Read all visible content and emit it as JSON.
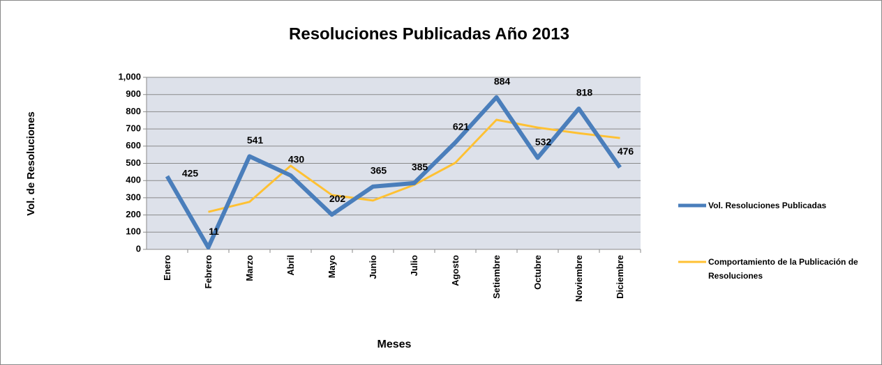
{
  "chart_data": {
    "type": "line",
    "title": "Resoluciones Publicadas Año 2013",
    "xlabel": "Meses",
    "ylabel": "Vol. de Resoluciones",
    "categories": [
      "Enero",
      "Febrero",
      "Marzo",
      "Abril",
      "Mayo",
      "Junio",
      "Julio",
      "Agosto",
      "Setiembre",
      "Octubre",
      "Noviembre",
      "Diciembre"
    ],
    "series": [
      {
        "name": "Vol. Resoluciones Publicadas",
        "color": "#4a7ebb",
        "values": [
          425,
          11,
          541,
          430,
          202,
          365,
          385,
          621,
          884,
          532,
          818,
          476
        ]
      },
      {
        "name": "Comportamiento de la Publicación de Resoluciones",
        "color": "#ffc133",
        "values": [
          null,
          218,
          276,
          486,
          316,
          284,
          375,
          503,
          753,
          708,
          675,
          647
        ]
      }
    ],
    "ylim": [
      0,
      1000
    ],
    "yticks": [
      0,
      100,
      200,
      300,
      400,
      500,
      600,
      700,
      800,
      900,
      {
        "value": 1000,
        "label": "1,000"
      }
    ],
    "grid": true,
    "legend": "right"
  }
}
